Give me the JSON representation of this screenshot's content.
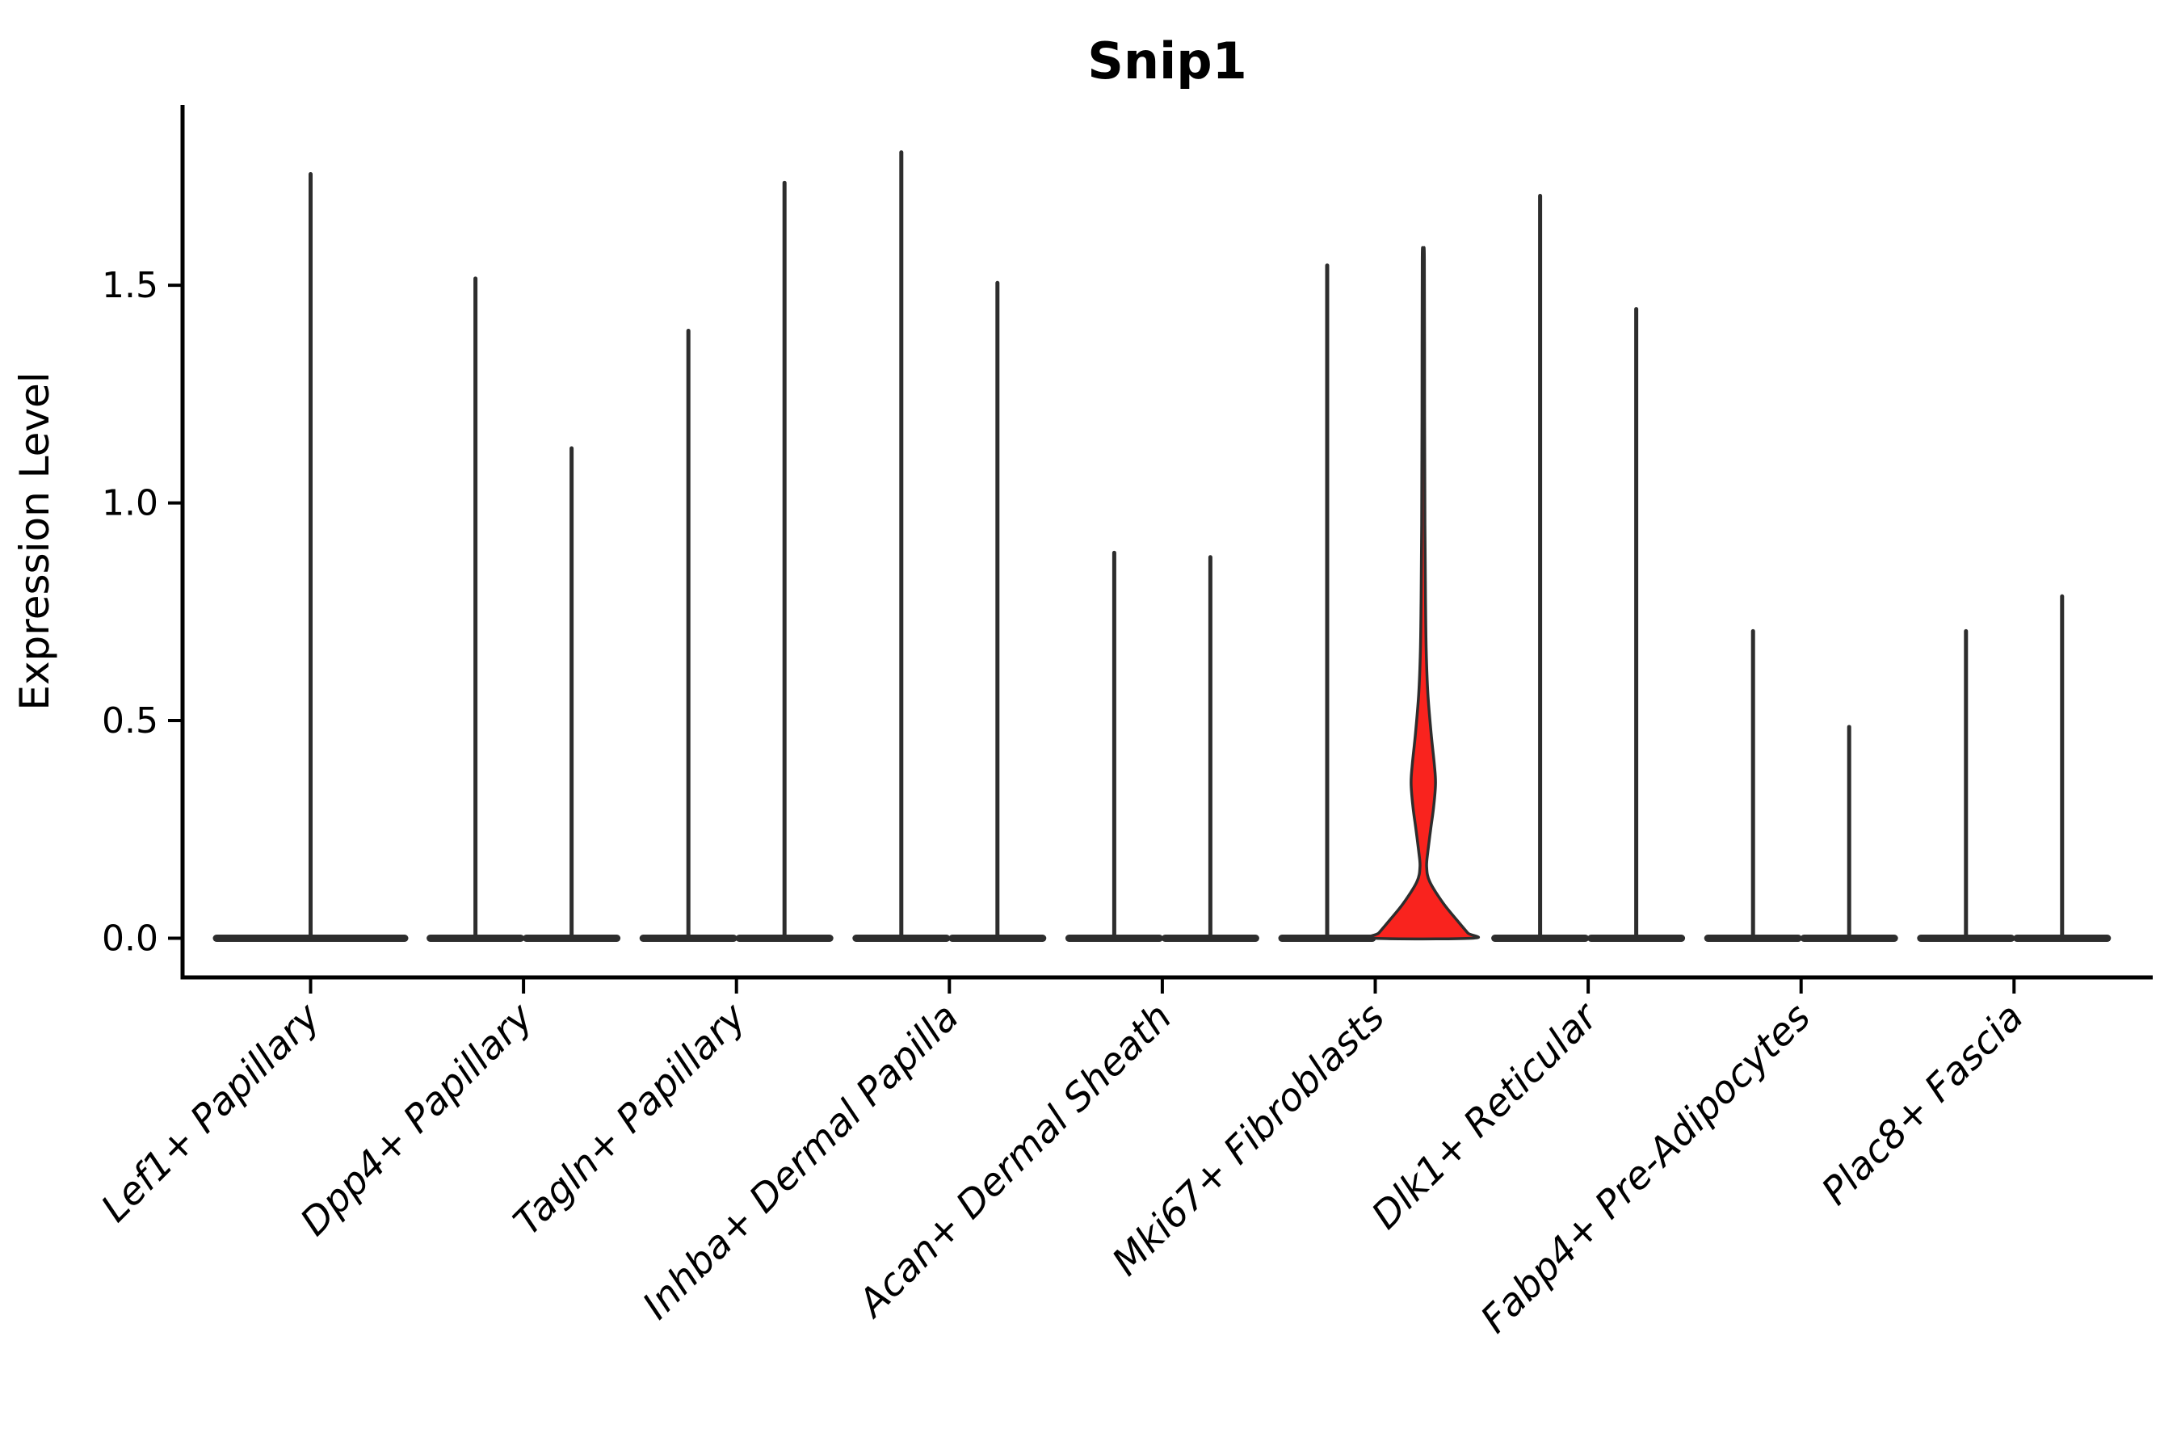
{
  "chart_data": {
    "type": "violin",
    "title": "Snip1",
    "ylabel": "Expression Level",
    "xlabel": "",
    "grid": false,
    "legend": "none",
    "ylim": [
      -0.09,
      1.914
    ],
    "ytick_values": [
      0.0,
      0.5,
      1.0,
      1.5
    ],
    "ytick_labels": [
      "0.0",
      "0.5",
      "1.0",
      "1.5"
    ],
    "line_color": "#2d2d2d",
    "axis_color": "#000000",
    "highlight_fill": "#f9231e",
    "categories": [
      {
        "label": "Lef1+ Papillary",
        "violins": [
          {
            "position": "center",
            "max": 1.76,
            "highlighted": false
          }
        ]
      },
      {
        "label": "Dpp4+ Papillary",
        "violins": [
          {
            "position": "left",
            "max": 1.52,
            "highlighted": false
          },
          {
            "position": "right",
            "max": 1.13,
            "highlighted": false
          }
        ]
      },
      {
        "label": "Tagln+ Papillary",
        "violins": [
          {
            "position": "left",
            "max": 1.4,
            "highlighted": false
          },
          {
            "position": "right",
            "max": 1.74,
            "highlighted": false
          }
        ]
      },
      {
        "label": "Inhba+ Dermal Papilla",
        "violins": [
          {
            "position": "left",
            "max": 1.81,
            "highlighted": false
          },
          {
            "position": "right",
            "max": 1.51,
            "highlighted": false
          }
        ]
      },
      {
        "label": "Acan+ Dermal Sheath",
        "violins": [
          {
            "position": "left",
            "max": 0.89,
            "highlighted": false
          },
          {
            "position": "right",
            "max": 0.88,
            "highlighted": false
          }
        ]
      },
      {
        "label": "Mki67+ Fibroblasts",
        "violins": [
          {
            "position": "left",
            "max": 1.55,
            "highlighted": false
          },
          {
            "position": "right",
            "max": 1.56,
            "highlighted": true,
            "profile": [
              [
                1.56,
                0.022
              ],
              [
                1.2,
                0.027
              ],
              [
                0.95,
                0.033
              ],
              [
                0.78,
                0.045
              ],
              [
                0.66,
                0.06
              ],
              [
                0.56,
                0.095
              ],
              [
                0.47,
                0.16
              ],
              [
                0.4,
                0.225
              ],
              [
                0.355,
                0.25
              ],
              [
                0.3,
                0.21
              ],
              [
                0.25,
                0.15
              ],
              [
                0.2,
                0.095
              ],
              [
                0.165,
                0.068
              ],
              [
                0.13,
                0.13
              ],
              [
                0.08,
                0.41
              ],
              [
                0.04,
                0.7
              ],
              [
                0.012,
                0.91
              ],
              [
                0.0,
                1.0
              ]
            ]
          }
        ]
      },
      {
        "label": "Dlk1+ Reticular",
        "violins": [
          {
            "position": "left",
            "max": 1.71,
            "highlighted": false
          },
          {
            "position": "right",
            "max": 1.45,
            "highlighted": false
          }
        ]
      },
      {
        "label": "Fabp4+ Pre-Adipocytes",
        "violins": [
          {
            "position": "left",
            "max": 0.71,
            "highlighted": false
          },
          {
            "position": "right",
            "max": 0.49,
            "highlighted": false
          }
        ]
      },
      {
        "label": "Plac8+ Fascia",
        "violins": [
          {
            "position": "left",
            "max": 0.71,
            "highlighted": false
          },
          {
            "position": "right",
            "max": 0.79,
            "highlighted": false
          }
        ]
      }
    ]
  }
}
